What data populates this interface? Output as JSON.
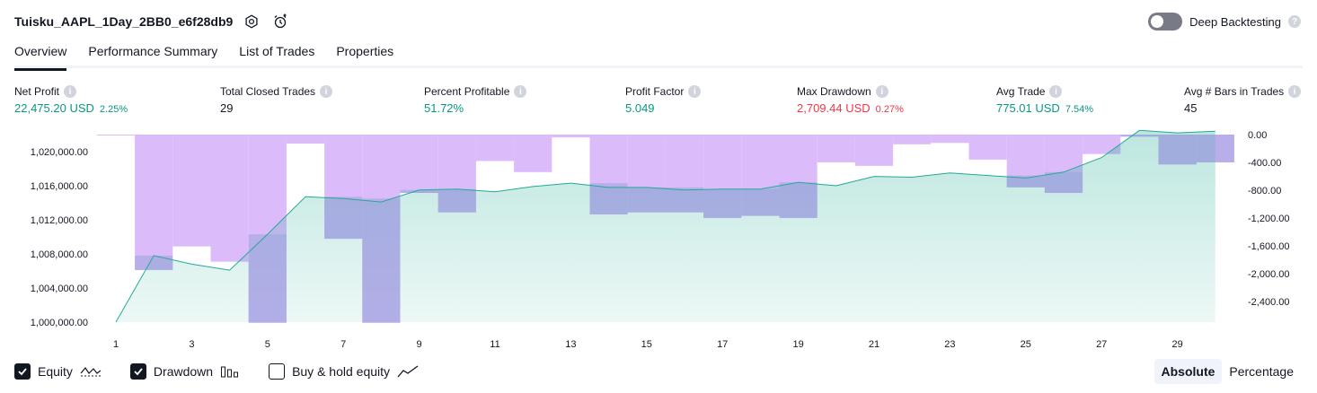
{
  "strategy": {
    "title": "Tuisku_AAPL_1Day_2BB0_e6f28db9"
  },
  "deep_backtesting": {
    "label": "Deep Backtesting"
  },
  "tabs": [
    {
      "label": "Overview"
    },
    {
      "label": "Performance Summary"
    },
    {
      "label": "List of Trades"
    },
    {
      "label": "Properties"
    }
  ],
  "stats": {
    "net_profit": {
      "label": "Net Profit",
      "value": "22,475.20 USD",
      "pct": "2.25%"
    },
    "total_closed_trades": {
      "label": "Total Closed Trades",
      "value": "29"
    },
    "percent_profitable": {
      "label": "Percent Profitable",
      "value": "51.72%"
    },
    "profit_factor": {
      "label": "Profit Factor",
      "value": "5.049"
    },
    "max_drawdown": {
      "label": "Max Drawdown",
      "value": "2,709.44 USD",
      "pct": "0.27%"
    },
    "avg_trade": {
      "label": "Avg Trade",
      "value": "775.01 USD",
      "pct": "7.54%"
    },
    "avg_bars": {
      "label": "Avg # Bars in Trades",
      "value": "45"
    }
  },
  "colors": {
    "profit": "#089981",
    "loss": "#f23645",
    "equity_line": "#22ab94",
    "drawdown_bar": "#dcbbfb"
  },
  "chart_data": {
    "type": "area",
    "x_ticks": [
      "1",
      "3",
      "5",
      "7",
      "9",
      "11",
      "13",
      "15",
      "17",
      "19",
      "21",
      "23",
      "25",
      "27",
      "29"
    ],
    "left_axis": {
      "series": "Equity",
      "ylim": [
        1000000,
        1022000
      ],
      "ticks": [
        "1,000,000.00",
        "1,004,000.00",
        "1,008,000.00",
        "1,012,000.00",
        "1,016,000.00",
        "1,020,000.00"
      ]
    },
    "right_axis": {
      "series": "Drawdown",
      "ylim": [
        -2700,
        0
      ],
      "ticks": [
        "0.00",
        "-400.00",
        "-800.00",
        "-1,200.00",
        "-1,600.00",
        "-2,000.00",
        "-2,400.00"
      ]
    },
    "series": [
      {
        "name": "Equity",
        "x": [
          1,
          2,
          3,
          4,
          5,
          6,
          7,
          8,
          9,
          10,
          11,
          12,
          13,
          14,
          15,
          16,
          17,
          18,
          19,
          20,
          21,
          22,
          23,
          24,
          25,
          26,
          27,
          28,
          29,
          30
        ],
        "values": [
          1000000,
          1007800,
          1006800,
          1006100,
          1010300,
          1014700,
          1014500,
          1014100,
          1015500,
          1015600,
          1015300,
          1015900,
          1016300,
          1015800,
          1015800,
          1015500,
          1015600,
          1015600,
          1016400,
          1016000,
          1017100,
          1017000,
          1017500,
          1017200,
          1016900,
          1017600,
          1019300,
          1022500,
          1022200,
          1022400
        ]
      },
      {
        "name": "Drawdown",
        "x": [
          1,
          2,
          3,
          4,
          5,
          6,
          7,
          8,
          9,
          10,
          11,
          12,
          13,
          14,
          15,
          16,
          17,
          18,
          19,
          20,
          21,
          22,
          23,
          24,
          25,
          26,
          27,
          28,
          29,
          30
        ],
        "values": [
          -10,
          -1950,
          -1610,
          -1830,
          -2709,
          -130,
          -1500,
          -2709,
          -840,
          -1120,
          -380,
          -540,
          -40,
          -1150,
          -1120,
          -1120,
          -1200,
          -1170,
          -1200,
          -400,
          -450,
          -140,
          -120,
          -360,
          -760,
          -840,
          -280,
          -30,
          -430,
          -400
        ]
      }
    ],
    "legend": [
      "Equity",
      "Drawdown",
      "Buy & hold equity"
    ]
  },
  "legend": {
    "equity": {
      "label": "Equity",
      "checked": true
    },
    "drawdown": {
      "label": "Drawdown",
      "checked": true
    },
    "buy_hold": {
      "label": "Buy & hold equity",
      "checked": false
    }
  },
  "mode": {
    "absolute": "Absolute",
    "percentage": "Percentage"
  }
}
